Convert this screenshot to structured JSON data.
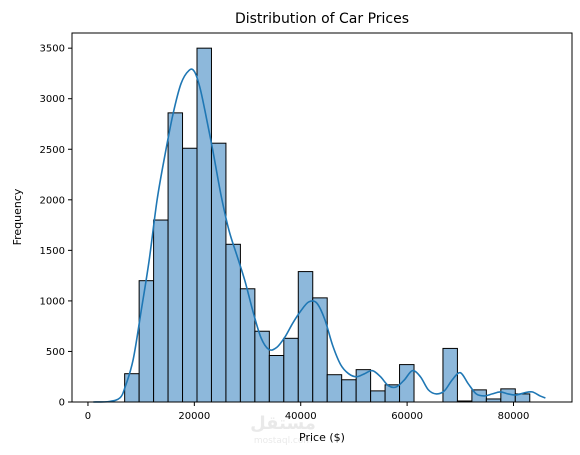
{
  "chart_data": {
    "type": "bar",
    "subtype": "histogram-with-kde",
    "title": "Distribution of Car Prices",
    "xlabel": "Price ($)",
    "ylabel": "Frequency",
    "xlim": [
      -3000,
      91000
    ],
    "ylim": [
      0,
      3650
    ],
    "xticks": [
      0,
      20000,
      40000,
      60000,
      80000
    ],
    "yticks": [
      0,
      500,
      1000,
      1500,
      2000,
      2500,
      3000,
      3500
    ],
    "xtick_labels": [
      "0",
      "20000",
      "40000",
      "60000",
      "80000"
    ],
    "ytick_labels": [
      "0",
      "500",
      "1000",
      "1500",
      "2000",
      "2500",
      "3000",
      "3500"
    ],
    "grid": false,
    "bar_fill": "#8db8db",
    "bar_edge": "#000000",
    "kde_color": "#1f77b4",
    "bin_edges": [
      6900,
      9620,
      12340,
      15060,
      17780,
      20500,
      23220,
      25940,
      28660,
      31380,
      34100,
      36820,
      39540,
      42260,
      44980,
      47700,
      50420,
      53140,
      55860,
      58580,
      61300,
      64020,
      66740,
      69460,
      72180,
      74900,
      77620,
      80340,
      83060,
      85780
    ],
    "values": [
      280,
      1200,
      1800,
      2860,
      2510,
      3500,
      2560,
      1560,
      1120,
      700,
      460,
      630,
      1290,
      1030,
      270,
      220,
      320,
      110,
      170,
      370,
      0,
      0,
      530,
      10,
      120,
      30,
      130,
      80,
      0
    ],
    "kde": {
      "x": [
        1000,
        4000,
        6000,
        7000,
        8500,
        10000,
        11500,
        13000,
        14500,
        16000,
        17500,
        19000,
        20000,
        21000,
        22000,
        23500,
        25000,
        26500,
        28000,
        29500,
        31000,
        32500,
        34000,
        35500,
        37000,
        38500,
        40000,
        41500,
        43000,
        44500,
        46000,
        47500,
        49000,
        50500,
        52000,
        53500,
        55000,
        56500,
        58000,
        59500,
        61000,
        62500,
        64000,
        65500,
        67000,
        68500,
        70000,
        71500,
        73000,
        74500,
        76000,
        77500,
        79000,
        80500,
        82000,
        83500,
        85000,
        86000
      ],
      "y": [
        0,
        5,
        40,
        150,
        420,
        900,
        1400,
        2000,
        2450,
        2850,
        3150,
        3280,
        3270,
        3120,
        2880,
        2480,
        2050,
        1700,
        1450,
        1200,
        900,
        640,
        520,
        540,
        640,
        780,
        900,
        990,
        980,
        820,
        560,
        370,
        280,
        250,
        280,
        310,
        250,
        160,
        150,
        220,
        310,
        250,
        120,
        80,
        110,
        220,
        290,
        180,
        80,
        60,
        80,
        100,
        80,
        70,
        90,
        100,
        60,
        40
      ]
    }
  },
  "watermark": {
    "text": "مستقل",
    "subtext": "mostaql.com"
  }
}
